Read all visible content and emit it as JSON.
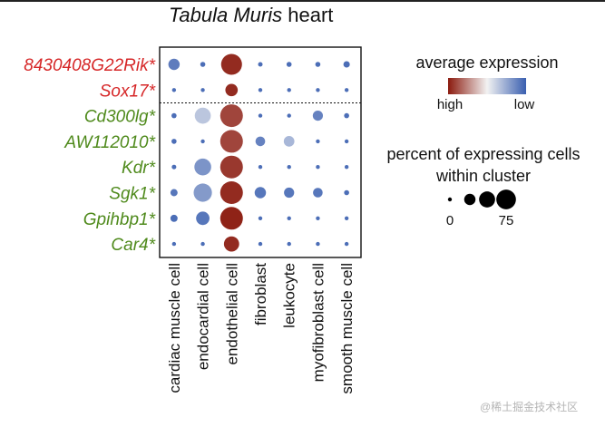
{
  "chart_data": {
    "type": "dotplot",
    "title_italic": "Tabula Muris",
    "title_plain": "heart",
    "genes": [
      {
        "label": "8430408G22Rik*",
        "color": "#d62728"
      },
      {
        "label": "Sox17*",
        "color": "#d62728"
      },
      {
        "label": "Cd300lg*",
        "color": "#4f8a1c"
      },
      {
        "label": "AW112010*",
        "color": "#4f8a1c"
      },
      {
        "label": "Kdr*",
        "color": "#4f8a1c"
      },
      {
        "label": "Sgk1*",
        "color": "#4f8a1c"
      },
      {
        "label": "Gpihbp1*",
        "color": "#4f8a1c"
      },
      {
        "label": "Car4*",
        "color": "#4f8a1c"
      }
    ],
    "clusters": [
      "cardiac muscle cell",
      "endocardial cell",
      "endothelial cell",
      "fibroblast",
      "leukocyte",
      "myofibroblast cell",
      "smooth muscle cell"
    ],
    "percent_expressing": [
      [
        25,
        5,
        85,
        4,
        5,
        5,
        8
      ],
      [
        1,
        1,
        30,
        1,
        1,
        1,
        1
      ],
      [
        5,
        50,
        100,
        2,
        2,
        20,
        5
      ],
      [
        5,
        1,
        100,
        18,
        22,
        1,
        2
      ],
      [
        4,
        55,
        100,
        1,
        2,
        2,
        2
      ],
      [
        10,
        65,
        100,
        25,
        20,
        18,
        5
      ],
      [
        10,
        35,
        100,
        3,
        2,
        3,
        3
      ],
      [
        2,
        1,
        45,
        1,
        1,
        1,
        1
      ]
    ],
    "average_expression": [
      [
        0.1,
        0.05,
        0.96,
        0.05,
        0.05,
        0.05,
        0.05
      ],
      [
        0.05,
        0.05,
        0.96,
        0.05,
        0.05,
        0.05,
        0.05
      ],
      [
        0.05,
        0.35,
        0.9,
        0.05,
        0.05,
        0.12,
        0.05
      ],
      [
        0.05,
        0.05,
        0.9,
        0.12,
        0.3,
        0.05,
        0.05
      ],
      [
        0.05,
        0.18,
        0.93,
        0.05,
        0.05,
        0.05,
        0.05
      ],
      [
        0.08,
        0.2,
        0.96,
        0.08,
        0.08,
        0.08,
        0.05
      ],
      [
        0.05,
        0.08,
        0.98,
        0.05,
        0.05,
        0.05,
        0.05
      ],
      [
        0.05,
        0.05,
        0.96,
        0.05,
        0.05,
        0.05,
        0.05
      ]
    ],
    "separator_after_row": 2,
    "color_legend": {
      "title": "average expression",
      "high_label": "high",
      "low_label": "low",
      "high_color": "#8b1a0e",
      "mid_color": "#f2f2f2",
      "low_color": "#3a5fb0"
    },
    "size_legend": {
      "title_line1": "percent of expressing cells",
      "title_line2": "within cluster",
      "values": [
        0,
        25,
        50,
        75
      ],
      "tick_labels": [
        "0",
        "75"
      ]
    }
  },
  "watermark": "@稀土掘金技术社区"
}
